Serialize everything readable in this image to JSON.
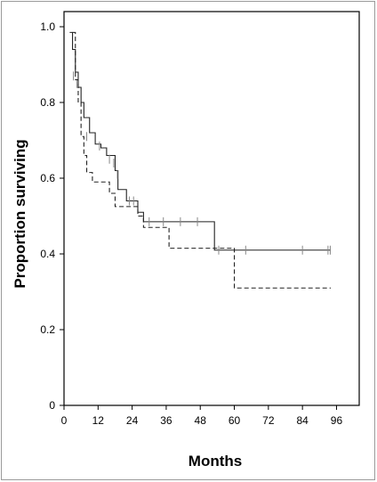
{
  "chart_data": {
    "type": "line",
    "title": "",
    "xlabel": "Months",
    "ylabel": "Proportion surviving",
    "xlim": [
      0,
      104
    ],
    "ylim": [
      0,
      1.04
    ],
    "xticks": [
      0,
      12,
      24,
      36,
      48,
      60,
      72,
      84,
      96
    ],
    "yticks": [
      0,
      0.2,
      0.4,
      0.6,
      0.8,
      1.0
    ],
    "ytick_labels": [
      "0",
      "0.2",
      "0.4",
      "0.6",
      "0.8",
      "1.0"
    ],
    "grid": false,
    "legend": "none",
    "series": [
      {
        "style": "solid",
        "color": "#222222",
        "steps": [
          [
            2,
            0.985
          ],
          [
            3,
            0.94
          ],
          [
            4,
            0.88
          ],
          [
            5,
            0.84
          ],
          [
            6,
            0.8
          ],
          [
            7,
            0.76
          ],
          [
            9,
            0.72
          ],
          [
            11,
            0.69
          ],
          [
            13,
            0.68
          ],
          [
            15,
            0.66
          ],
          [
            18,
            0.62
          ],
          [
            19,
            0.57
          ],
          [
            22,
            0.54
          ],
          [
            26,
            0.51
          ],
          [
            28,
            0.485
          ],
          [
            53,
            0.41
          ],
          [
            94,
            0.41
          ]
        ],
        "censor_marks": [
          [
            3.3,
            0.87
          ],
          [
            4.5,
            0.85
          ],
          [
            8,
            0.71
          ],
          [
            12.5,
            0.685
          ],
          [
            16,
            0.65
          ],
          [
            17.5,
            0.64
          ],
          [
            18.8,
            0.61
          ],
          [
            23,
            0.54
          ],
          [
            24.5,
            0.54
          ],
          [
            30,
            0.485
          ],
          [
            35,
            0.485
          ],
          [
            41,
            0.485
          ],
          [
            47,
            0.485
          ],
          [
            54.5,
            0.41
          ],
          [
            64,
            0.41
          ],
          [
            84,
            0.41
          ],
          [
            93,
            0.41
          ],
          [
            93.8,
            0.41
          ]
        ]
      },
      {
        "style": "dashed",
        "color": "#222222",
        "steps": [
          [
            3,
            0.985
          ],
          [
            4,
            0.86
          ],
          [
            5,
            0.8
          ],
          [
            6,
            0.71
          ],
          [
            7,
            0.66
          ],
          [
            8,
            0.615
          ],
          [
            10,
            0.59
          ],
          [
            16,
            0.56
          ],
          [
            18,
            0.525
          ],
          [
            26,
            0.5
          ],
          [
            28,
            0.47
          ],
          [
            37,
            0.415
          ],
          [
            60,
            0.31
          ],
          [
            94,
            0.31
          ]
        ],
        "censor_marks": []
      }
    ]
  }
}
